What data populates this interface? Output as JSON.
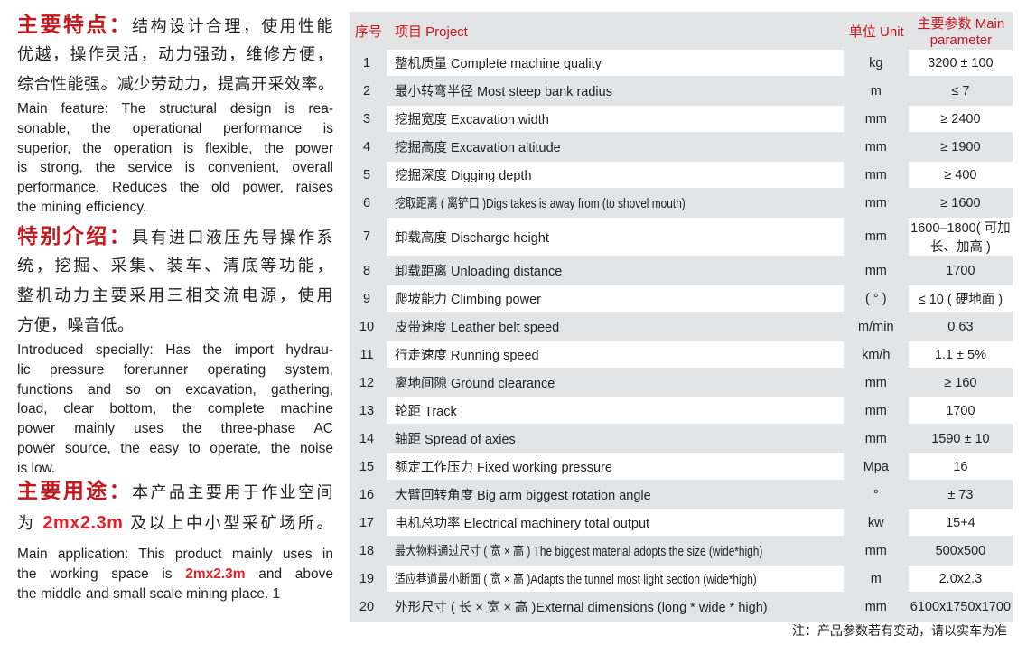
{
  "features": {
    "heading": "主要特点：",
    "cn_lines": [
      "结构设计合理，使用性能",
      "优越，操作灵活，动力强劲，维修方便，",
      "综合性能强。减少劳动力，提高开采效率。"
    ],
    "en_lines": [
      "Main feature: The structural design is rea-",
      "sonable, the operational performance is",
      "superior, the operation is flexible, the power",
      "is strong, the service is convenient, overall",
      "performance. Reduces the old power, raises",
      "the mining efficiency."
    ]
  },
  "special": {
    "heading": "特别介绍：",
    "cn_lines": [
      "具有进口液压先导操作系",
      "统，挖掘、采集、装车、清底等功能，",
      "整机动力主要采用三相交流电源，使用",
      "方便，噪音低。"
    ],
    "en_lines": [
      "Introduced specially: Has the import hydrau-",
      "lic pressure forerunner operating system,",
      "functions and so on excavation, gathering,",
      "load, clear bottom, the complete machine",
      "power mainly uses the three-phase AC",
      "power source, the easy to operate, the noise",
      "is low."
    ]
  },
  "application": {
    "heading": "主要用途：",
    "cn_line1": "本产品主要用于作业空间",
    "cn_line2_pre": "为",
    "cn_highlight": "2mx2.3m",
    "cn_line2_post": "及以上中小型采矿场所。",
    "en_line1": "Main application: This product mainly uses in",
    "en_line2_pre": "the working space is",
    "en_highlight": "2mx2.3m",
    "en_line2_post": "and above",
    "en_line3": "the middle and small scale mining place.  1"
  },
  "table": {
    "headers": {
      "seq": "序号",
      "project": "项目 Project",
      "unit": "单位 Unit",
      "param": "主要参数 Main parameter"
    },
    "rows": [
      {
        "seq": "1",
        "project": "整机质量 Complete machine quality",
        "unit": "kg",
        "param": "3200 ± 100"
      },
      {
        "seq": "2",
        "project": "最小转弯半径 Most steep bank radius",
        "unit": "m",
        "param": "≤ 7"
      },
      {
        "seq": "3",
        "project": "挖掘宽度 Excavation width",
        "unit": "mm",
        "param": "≥ 2400"
      },
      {
        "seq": "4",
        "project": "挖掘高度 Excavation altitude",
        "unit": "mm",
        "param": "≥ 1900"
      },
      {
        "seq": "5",
        "project": "挖掘深度 Digging depth",
        "unit": "mm",
        "param": "≥ 400"
      },
      {
        "seq": "6",
        "project": "挖取距离 ( 离铲口 )Digs takes is away from (to shovel mouth)",
        "unit": "mm",
        "param": "≥ 1600"
      },
      {
        "seq": "7",
        "project": "卸载高度 Discharge height",
        "unit": "mm",
        "param": "1600–1800( 可加长、加高 )"
      },
      {
        "seq": "8",
        "project": "卸载距离 Unloading distance",
        "unit": "mm",
        "param": "1700"
      },
      {
        "seq": "9",
        "project": "爬坡能力 Climbing power",
        "unit": "( ° )",
        "param": "≤ 10 ( 硬地面 )"
      },
      {
        "seq": "10",
        "project": "皮带速度 Leather belt speed",
        "unit": "m/min",
        "param": "0.63"
      },
      {
        "seq": "11",
        "project": "行走速度 Running speed",
        "unit": "km/h",
        "param": "1.1 ± 5%"
      },
      {
        "seq": "12",
        "project": "离地间隙 Ground clearance",
        "unit": "mm",
        "param": "≥ 160"
      },
      {
        "seq": "13",
        "project": "轮距 Track",
        "unit": "mm",
        "param": "1700"
      },
      {
        "seq": "14",
        "project": "轴距 Spread of axies",
        "unit": "mm",
        "param": "1590 ± 10"
      },
      {
        "seq": "15",
        "project": "额定工作压力 Fixed working pressure",
        "unit": "Mpa",
        "param": "16"
      },
      {
        "seq": "16",
        "project": "大臂回转角度 Big arm biggest rotation angle",
        "unit": "°",
        "param": "± 73"
      },
      {
        "seq": "17",
        "project": "电机总功率 Electrical machinery total output",
        "unit": "kw",
        "param": "15+4"
      },
      {
        "seq": "18",
        "project": "最大物料通过尺寸 ( 宽 × 高 ) The biggest material adopts the size (wide*high)",
        "unit": "mm",
        "param": "500x500"
      },
      {
        "seq": "19",
        "project": "适应巷道最小断面 ( 宽 × 高 )Adapts the tunnel most light section (wide*high)",
        "unit": "m",
        "param": "2.0x2.3"
      },
      {
        "seq": "20",
        "project": "外形尺寸 ( 长 × 宽 × 高 )External dimensions (long * wide * high)",
        "unit": "mm",
        "param": "6100x1750x1700"
      }
    ]
  },
  "note": "注：产品参数若有变动，请以实车为准",
  "colors": {
    "heading_red": "#c8161d",
    "highlight_red": "#e8202a",
    "table_grey": "#e3e4e6"
  }
}
